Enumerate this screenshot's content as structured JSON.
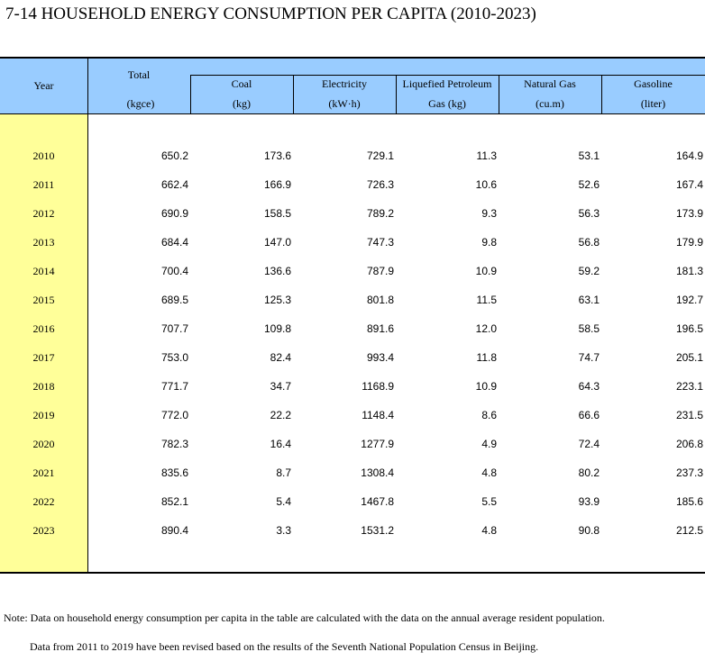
{
  "title": "7-14  HOUSEHOLD ENERGY CONSUMPTION PER CAPITA (2010-2023)",
  "headers": {
    "year": "Year",
    "total": "Total",
    "total_unit": "(kgce)",
    "coal": "Coal",
    "coal_unit": "(kg)",
    "electricity": "Electricity",
    "electricity_unit": "(kW·h)",
    "lpg_line1": "Liquefied Petroleum",
    "lpg_line2": "Gas (kg)",
    "natural_gas": "Natural Gas",
    "natural_gas_unit": "(cu.m)",
    "gasoline": "Gasoline",
    "gasoline_unit": "(liter)"
  },
  "rows": [
    [
      "2010",
      "650.2",
      "173.6",
      "729.1",
      "11.3",
      "53.1",
      "164.9"
    ],
    [
      "2011",
      "662.4",
      "166.9",
      "726.3",
      "10.6",
      "52.6",
      "167.4"
    ],
    [
      "2012",
      "690.9",
      "158.5",
      "789.2",
      "9.3",
      "56.3",
      "173.9"
    ],
    [
      "2013",
      "684.4",
      "147.0",
      "747.3",
      "9.8",
      "56.8",
      "179.9"
    ],
    [
      "2014",
      "700.4",
      "136.6",
      "787.9",
      "10.9",
      "59.2",
      "181.3"
    ],
    [
      "2015",
      "689.5",
      "125.3",
      "801.8",
      "11.5",
      "63.1",
      "192.7"
    ],
    [
      "2016",
      "707.7",
      "109.8",
      "891.6",
      "12.0",
      "58.5",
      "196.5"
    ],
    [
      "2017",
      "753.0",
      "82.4",
      "993.4",
      "11.8",
      "74.7",
      "205.1"
    ],
    [
      "2018",
      "771.7",
      "34.7",
      "1168.9",
      "10.9",
      "64.3",
      "223.1"
    ],
    [
      "2019",
      "772.0",
      "22.2",
      "1148.4",
      "8.6",
      "66.6",
      "231.5"
    ],
    [
      "2020",
      "782.3",
      "16.4",
      "1277.9",
      "4.9",
      "72.4",
      "206.8"
    ],
    [
      "2021",
      "835.6",
      "8.7",
      "1308.4",
      "4.8",
      "80.2",
      "237.3"
    ],
    [
      "2022",
      "852.1",
      "5.4",
      "1467.8",
      "5.5",
      "93.9",
      "185.6"
    ],
    [
      "2023",
      "890.4",
      "3.3",
      "1531.2",
      "4.8",
      "90.8",
      "212.5"
    ]
  ],
  "notes": [
    "Note: Data on household energy consumption per capita in the table are calculated with the data on the annual average resident population.",
    "Data from 2011 to 2019 have been revised based on the results of the Seventh National Population Census in Beijing."
  ]
}
